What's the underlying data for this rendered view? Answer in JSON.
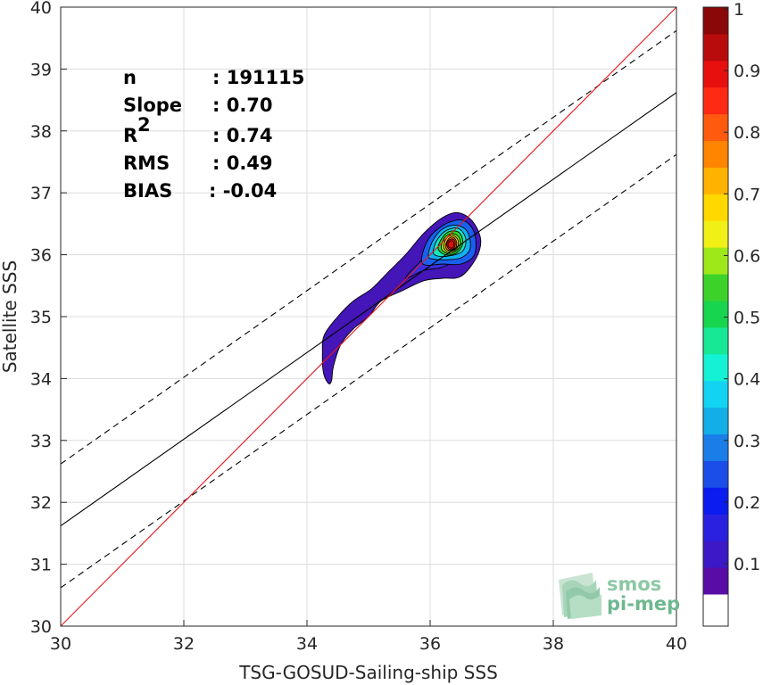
{
  "chart_data": {
    "type": "density-scatter",
    "xlabel": "TSG-GOSUD-Sailing-ship SSS",
    "ylabel": "Satellite SSS",
    "xlim": [
      30,
      40
    ],
    "ylim": [
      30,
      40
    ],
    "xticks": [
      "30",
      "32",
      "34",
      "36",
      "38",
      "40"
    ],
    "yticks": [
      "30",
      "31",
      "32",
      "33",
      "34",
      "35",
      "36",
      "37",
      "38",
      "39",
      "40"
    ],
    "grid": true,
    "stats": [
      {
        "label": "n",
        "value": ": 191115"
      },
      {
        "label": "Slope",
        "value": ": 0.70"
      },
      {
        "label": "R",
        "sup": "2",
        "value": ": 0.74"
      },
      {
        "label": "RMS",
        "value": ": 0.49"
      },
      {
        "label": "BIAS",
        "value": ": -0.04"
      }
    ],
    "lines": {
      "identity": {
        "color": "#e8161b",
        "points": [
          [
            30,
            30
          ],
          [
            40,
            40
          ]
        ]
      },
      "regression": {
        "color": "#000000",
        "points": [
          [
            30,
            31.62
          ],
          [
            40,
            38.62
          ]
        ]
      },
      "upper_bound": {
        "color": "#000000",
        "dashed": true,
        "points": [
          [
            30,
            32.62
          ],
          [
            40,
            39.62
          ]
        ]
      },
      "lower_bound": {
        "color": "#000000",
        "dashed": true,
        "points": [
          [
            30,
            30.62
          ],
          [
            40,
            37.62
          ]
        ]
      }
    },
    "density_contours": [
      {
        "level": 0.05,
        "color": "#4416b8",
        "points": [
          [
            34.35,
            33.92
          ],
          [
            34.27,
            34.08
          ],
          [
            34.25,
            34.4
          ],
          [
            34.28,
            34.7
          ],
          [
            34.5,
            35.0
          ],
          [
            34.75,
            35.25
          ],
          [
            35.05,
            35.45
          ],
          [
            35.3,
            35.7
          ],
          [
            35.6,
            36.0
          ],
          [
            35.9,
            36.35
          ],
          [
            36.2,
            36.6
          ],
          [
            36.45,
            36.68
          ],
          [
            36.68,
            36.55
          ],
          [
            36.82,
            36.25
          ],
          [
            36.75,
            35.95
          ],
          [
            36.5,
            35.65
          ],
          [
            36.2,
            35.62
          ],
          [
            35.9,
            35.58
          ],
          [
            35.55,
            35.42
          ],
          [
            35.2,
            35.25
          ],
          [
            35.0,
            35.0
          ],
          [
            34.75,
            34.8
          ],
          [
            34.55,
            34.55
          ],
          [
            34.43,
            34.2
          ],
          [
            34.4,
            33.97
          ]
        ]
      },
      {
        "level": 0.15,
        "color": "#3a2fe0",
        "points": [
          [
            35.6,
            35.62
          ],
          [
            35.9,
            35.75
          ],
          [
            36.2,
            35.8
          ],
          [
            36.4,
            35.95
          ],
          [
            36.1,
            36.15
          ],
          [
            35.85,
            35.9
          ]
        ]
      },
      {
        "level": 0.2,
        "color": "#1a5ff0",
        "points": [
          [
            35.86,
            35.9
          ],
          [
            35.92,
            36.15
          ],
          [
            36.05,
            36.35
          ],
          [
            36.3,
            36.52
          ],
          [
            36.55,
            36.55
          ],
          [
            36.72,
            36.35
          ],
          [
            36.72,
            36.0
          ],
          [
            36.5,
            35.85
          ],
          [
            36.2,
            35.85
          ],
          [
            35.95,
            35.83
          ]
        ]
      },
      {
        "level": 0.3,
        "color": "#0fb2f2",
        "points": [
          [
            35.97,
            35.98
          ],
          [
            36.03,
            36.2
          ],
          [
            36.18,
            36.4
          ],
          [
            36.4,
            36.48
          ],
          [
            36.6,
            36.38
          ],
          [
            36.65,
            36.1
          ],
          [
            36.5,
            35.95
          ],
          [
            36.25,
            35.92
          ],
          [
            36.05,
            35.93
          ]
        ]
      },
      {
        "level": 0.4,
        "color": "#15e8c0",
        "points": [
          [
            36.05,
            36.05
          ],
          [
            36.12,
            36.25
          ],
          [
            36.28,
            36.4
          ],
          [
            36.47,
            36.42
          ],
          [
            36.58,
            36.25
          ],
          [
            36.52,
            36.05
          ],
          [
            36.3,
            35.98
          ],
          [
            36.12,
            35.98
          ]
        ]
      },
      {
        "level": 0.5,
        "color": "#2bd62b",
        "points": [
          [
            36.13,
            36.1
          ],
          [
            36.2,
            36.28
          ],
          [
            36.33,
            36.38
          ],
          [
            36.48,
            36.35
          ],
          [
            36.53,
            36.18
          ],
          [
            36.43,
            36.03
          ],
          [
            36.25,
            36.0
          ]
        ]
      },
      {
        "level": 0.6,
        "color": "#a6e61e",
        "points": [
          [
            36.18,
            36.12
          ],
          [
            36.24,
            36.28
          ],
          [
            36.36,
            36.34
          ],
          [
            36.47,
            36.28
          ],
          [
            36.48,
            36.13
          ],
          [
            36.36,
            36.03
          ],
          [
            36.24,
            36.04
          ]
        ]
      },
      {
        "level": 0.7,
        "color": "#ffd200",
        "points": [
          [
            36.22,
            36.14
          ],
          [
            36.27,
            36.27
          ],
          [
            36.37,
            36.31
          ],
          [
            36.45,
            36.24
          ],
          [
            36.44,
            36.11
          ],
          [
            36.34,
            36.05
          ],
          [
            36.25,
            36.07
          ]
        ]
      },
      {
        "level": 0.8,
        "color": "#ff7b00",
        "points": [
          [
            36.25,
            36.15
          ],
          [
            36.3,
            36.26
          ],
          [
            36.38,
            36.28
          ],
          [
            36.43,
            36.2
          ],
          [
            36.41,
            36.1
          ],
          [
            36.33,
            36.07
          ],
          [
            36.27,
            36.09
          ]
        ]
      },
      {
        "level": 0.9,
        "color": "#ff1a12",
        "points": [
          [
            36.27,
            36.16
          ],
          [
            36.31,
            36.24
          ],
          [
            36.38,
            36.25
          ],
          [
            36.41,
            36.18
          ],
          [
            36.38,
            36.1
          ],
          [
            36.31,
            36.09
          ]
        ]
      },
      {
        "level": 1.0,
        "color": "#e60b0b",
        "points": [
          [
            36.29,
            36.16
          ],
          [
            36.32,
            36.22
          ],
          [
            36.37,
            36.22
          ],
          [
            36.39,
            36.16
          ],
          [
            36.36,
            36.11
          ],
          [
            36.31,
            36.12
          ]
        ]
      }
    ],
    "colorbar": {
      "range": [
        0,
        1
      ],
      "ticks": [
        "0.1",
        "0.2",
        "0.3",
        "0.4",
        "0.5",
        "0.6",
        "0.7",
        "0.8",
        "0.9",
        "1"
      ],
      "colors": [
        "#ffffff",
        "#5a0ca6",
        "#3c18c6",
        "#2a21e0",
        "#0a1cf0",
        "#1b4de8",
        "#1a7de8",
        "#13ade8",
        "#12d4f2",
        "#14f2d6",
        "#17e896",
        "#17d54e",
        "#3dd22a",
        "#9ee81a",
        "#f0f016",
        "#ffd800",
        "#ffb200",
        "#ff8400",
        "#ff5a0e",
        "#ff2a14",
        "#e80f0f",
        "#b80c0c",
        "#8a0808"
      ]
    },
    "logo": {
      "line1": "smos",
      "line2": "pi-mep"
    }
  }
}
